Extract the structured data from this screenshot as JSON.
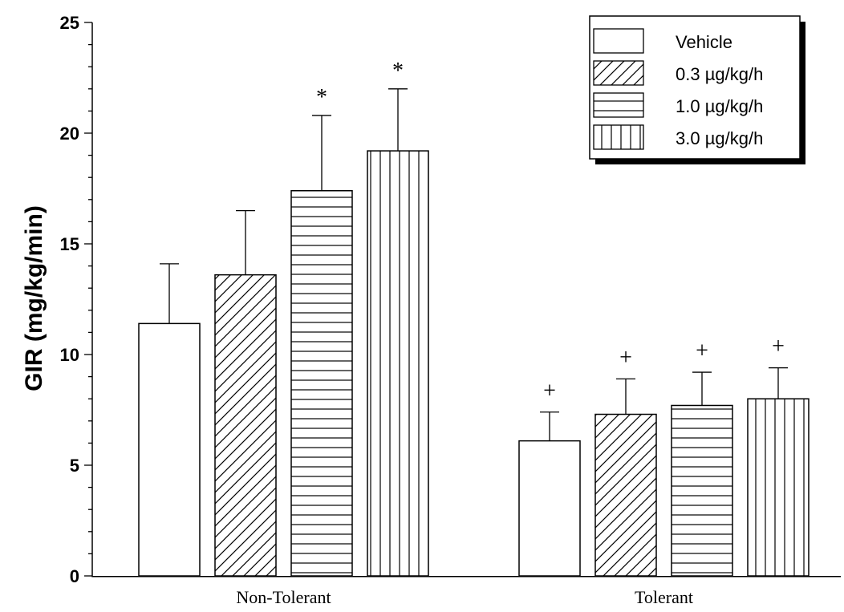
{
  "chart_data": {
    "type": "bar",
    "title": "",
    "xlabel": "",
    "ylabel": "GIR (mg/kg/min)",
    "ylim": [
      0,
      25
    ],
    "yticks": [
      0,
      5,
      10,
      15,
      20,
      25
    ],
    "grid": false,
    "legend_position": "top-right",
    "categories": [
      "Non-Tolerant",
      "Tolerant"
    ],
    "series": [
      {
        "name": "Vehicle",
        "pattern": "none",
        "values": [
          11.4,
          6.1
        ],
        "errors": [
          2.7,
          1.3
        ],
        "markers": [
          "",
          "+"
        ]
      },
      {
        "name": "0.3 µg/kg/h",
        "pattern": "diagonal",
        "values": [
          13.6,
          7.3
        ],
        "errors": [
          2.9,
          1.6
        ],
        "markers": [
          "",
          "+"
        ]
      },
      {
        "name": "1.0 µg/kg/h",
        "pattern": "horizontal",
        "values": [
          17.4,
          7.7
        ],
        "errors": [
          3.4,
          1.5
        ],
        "markers": [
          "*",
          "+"
        ]
      },
      {
        "name": "3.0 µg/kg/h",
        "pattern": "vertical",
        "values": [
          19.2,
          8.0
        ],
        "errors": [
          2.8,
          1.4
        ],
        "markers": [
          "*",
          "+"
        ]
      }
    ]
  }
}
